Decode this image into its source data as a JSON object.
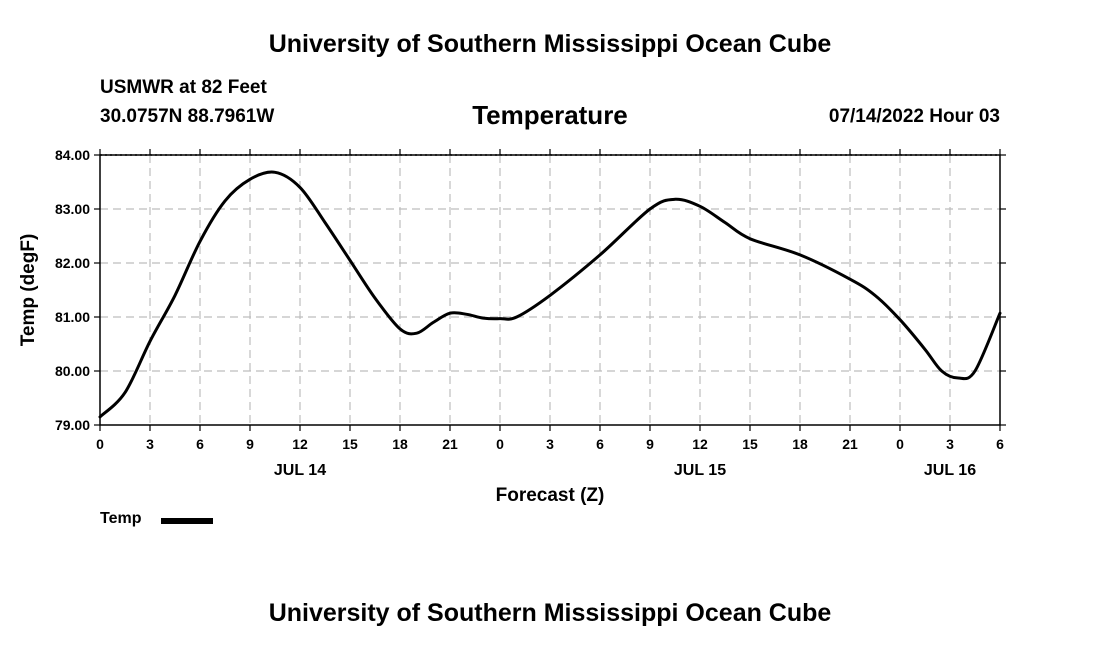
{
  "header": {
    "top_title": "University of Southern Mississippi Ocean Cube",
    "station": "USMWR at 82 Feet",
    "coords": "30.0757N  88.7961W",
    "datetime": "07/14/2022 Hour 03",
    "bottom_title": "University of Southern Mississippi Ocean Cube"
  },
  "chart_data": {
    "type": "line",
    "title": "Temperature",
    "xlabel": "Forecast (Z)",
    "ylabel": "Temp (degF)",
    "ylim": [
      79.0,
      84.0
    ],
    "yticks": [
      "79.00",
      "80.00",
      "81.00",
      "82.00",
      "83.00",
      "84.00"
    ],
    "xticks": [
      "0",
      "3",
      "6",
      "9",
      "12",
      "15",
      "18",
      "21",
      "0",
      "3",
      "6",
      "9",
      "12",
      "15",
      "18",
      "21",
      "0",
      "3",
      "6"
    ],
    "date_labels": [
      {
        "label": "JUL 14",
        "at_tick": 4
      },
      {
        "label": "JUL 15",
        "at_tick": 12
      },
      {
        "label": "JUL 16",
        "at_tick": 17
      }
    ],
    "grid": true,
    "legend_position": "bottom-left",
    "series": [
      {
        "name": "Temp",
        "color": "#000000",
        "points": [
          [
            0,
            79.15
          ],
          [
            1.5,
            79.6
          ],
          [
            3,
            80.55
          ],
          [
            4.5,
            81.4
          ],
          [
            6,
            82.4
          ],
          [
            7.5,
            83.15
          ],
          [
            9,
            83.55
          ],
          [
            10.5,
            83.68
          ],
          [
            12,
            83.4
          ],
          [
            13.5,
            82.75
          ],
          [
            15,
            82.05
          ],
          [
            16.5,
            81.35
          ],
          [
            18,
            80.78
          ],
          [
            19,
            80.7
          ],
          [
            20,
            80.9
          ],
          [
            21,
            81.07
          ],
          [
            22,
            81.05
          ],
          [
            23,
            80.98
          ],
          [
            24,
            80.97
          ],
          [
            25,
            81.0
          ],
          [
            27,
            81.4
          ],
          [
            30,
            82.15
          ],
          [
            33,
            83.0
          ],
          [
            34.5,
            83.18
          ],
          [
            36,
            83.05
          ],
          [
            37.5,
            82.75
          ],
          [
            39,
            82.45
          ],
          [
            42,
            82.15
          ],
          [
            45,
            81.7
          ],
          [
            46.5,
            81.4
          ],
          [
            48,
            80.95
          ],
          [
            49.5,
            80.4
          ],
          [
            50.5,
            80.0
          ],
          [
            51.5,
            79.87
          ],
          [
            52.5,
            80.0
          ],
          [
            54,
            81.07
          ]
        ]
      }
    ]
  }
}
